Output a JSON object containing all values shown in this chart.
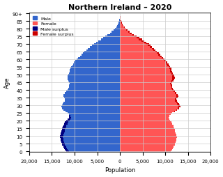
{
  "title": "Northern Ireland – 2020",
  "xlabel": "Population",
  "ylabel": "Age",
  "xlim": [
    -20000,
    20000
  ],
  "xticks": [
    -20000,
    -15000,
    -10000,
    -5000,
    0,
    5000,
    10000,
    15000,
    20000
  ],
  "xticklabels": [
    "20,000",
    "15,000",
    "10,000",
    "5,000",
    "0",
    "5,000",
    "10,000",
    "15,000",
    "20,000"
  ],
  "male_color": "#3366cc",
  "female_color": "#ff5555",
  "male_surplus_color": "#000080",
  "female_surplus_color": "#cc0000",
  "background_color": "#ffffff",
  "grid_color": "#cccccc",
  "male": [
    11800,
    12100,
    12300,
    12500,
    12700,
    12800,
    12900,
    13000,
    13100,
    13200,
    13200,
    13100,
    13000,
    12900,
    12800,
    12700,
    12600,
    12500,
    12300,
    12100,
    11800,
    11500,
    11300,
    11200,
    11300,
    11600,
    12000,
    12400,
    12700,
    12900,
    12800,
    12600,
    12400,
    12200,
    12100,
    12300,
    12500,
    12400,
    12200,
    11900,
    11500,
    11400,
    11300,
    11200,
    11100,
    11300,
    11400,
    11500,
    11600,
    11500,
    11400,
    11300,
    11100,
    11000,
    10900,
    10700,
    10500,
    10300,
    10100,
    9800,
    9500,
    9200,
    8800,
    8500,
    8200,
    7800,
    7400,
    7000,
    6600,
    6100,
    5700,
    5200,
    4700,
    4200,
    3700,
    3200,
    2700,
    2200,
    1800,
    1400,
    1100,
    850,
    630,
    450,
    310,
    200,
    120,
    75,
    45,
    25,
    15
  ],
  "female": [
    11200,
    11500,
    11700,
    11900,
    12100,
    12200,
    12300,
    12400,
    12500,
    12600,
    12500,
    12400,
    12300,
    12200,
    12100,
    12000,
    11900,
    11800,
    11600,
    11400,
    11100,
    10900,
    10800,
    10900,
    11200,
    11600,
    12100,
    12600,
    13000,
    13300,
    13200,
    13000,
    12800,
    12600,
    12500,
    12700,
    12900,
    12700,
    12500,
    12200,
    11800,
    11700,
    11600,
    11500,
    11400,
    11600,
    11800,
    12000,
    12100,
    12000,
    11900,
    11700,
    11500,
    11400,
    11300,
    11100,
    10900,
    10700,
    10500,
    10200,
    9900,
    9600,
    9200,
    8900,
    8600,
    8200,
    7900,
    7600,
    7100,
    6800,
    6400,
    5900,
    5400,
    4900,
    4300,
    3700,
    3100,
    2600,
    2100,
    1650,
    1300,
    1020,
    790,
    590,
    430,
    300,
    200,
    130,
    82,
    50,
    30
  ]
}
